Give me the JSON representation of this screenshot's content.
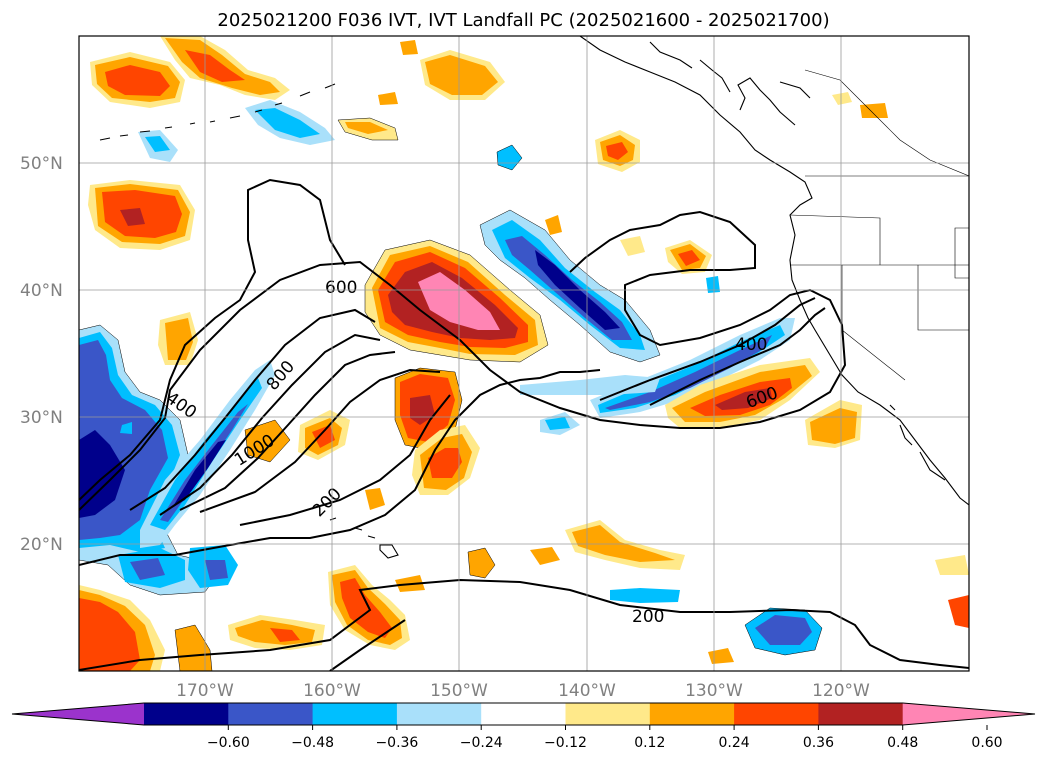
{
  "title": "2025021200 F036 IVT, IVT Landfall PC (2025021600 - 2025021700)",
  "lat_labels": [
    "50°N",
    "40°N",
    "30°N",
    "20°N"
  ],
  "lon_labels": [
    "170°W",
    "160°W",
    "150°W",
    "140°W",
    "130°W",
    "120°W"
  ],
  "contour_labels": [
    "600",
    "800",
    "400",
    "1000",
    "200",
    "400",
    "600",
    "200"
  ],
  "colorbar": {
    "ticks": [
      "−0.60",
      "−0.48",
      "−0.36",
      "−0.24",
      "−0.12",
      "0.12",
      "0.24",
      "0.36",
      "0.48",
      "0.60"
    ],
    "colors": [
      "#9b33cc",
      "#00008b",
      "#3a56c8",
      "#00bfff",
      "#a9e0fa",
      "#ffffff",
      "#ffe98a",
      "#ffa500",
      "#ff4500",
      "#b22222",
      "#ff85b4"
    ]
  },
  "colors": {
    "dark_blue": "#00008b",
    "mid_blue": "#3a56c8",
    "blue": "#00bfff",
    "light_blue": "#a9e0fa",
    "yellow": "#ffe98a",
    "orange": "#ffa500",
    "red_orange": "#ff4500",
    "dark_red": "#b22222",
    "pink": "#ff85b4"
  }
}
